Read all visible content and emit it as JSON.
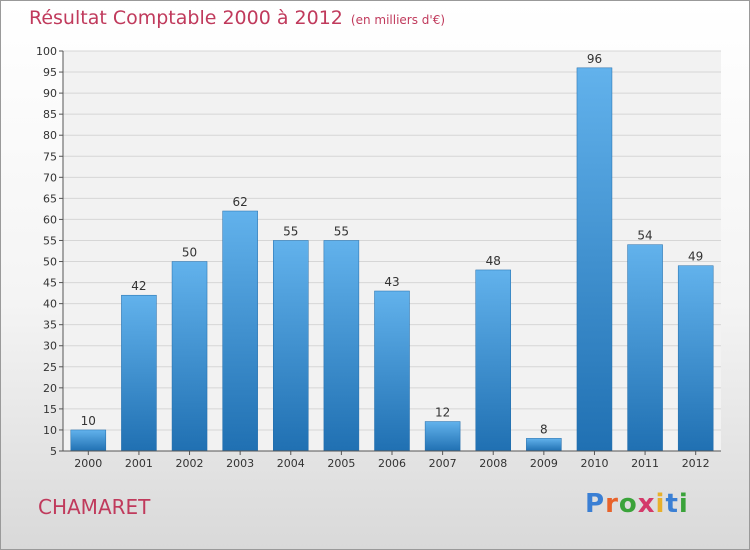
{
  "title": "Résultat Comptable 2000 à 2012",
  "subtitle": "(en milliers d'€)",
  "commune": "CHAMARET",
  "logo": {
    "text": "Proxiti",
    "colors": [
      "#3a7fd4",
      "#e8622a",
      "#3aa33a",
      "#d43a6a",
      "#e8b02a",
      "#3a7fd4",
      "#3aa33a"
    ]
  },
  "colors": {
    "bar": "#4296d6",
    "bar_light": "#62b2ec",
    "bar_dark": "#2070b2",
    "title": "#c03a5c"
  },
  "chart_data": {
    "type": "bar",
    "categories": [
      "2000",
      "2001",
      "2002",
      "2003",
      "2004",
      "2005",
      "2006",
      "2007",
      "2008",
      "2009",
      "2010",
      "2011",
      "2012"
    ],
    "values": [
      10,
      42,
      50,
      62,
      55,
      55,
      43,
      12,
      48,
      8,
      96,
      54,
      49
    ],
    "title": "Résultat Comptable 2000 à 2012",
    "xlabel": "",
    "ylabel": "",
    "ylim": [
      5,
      100
    ],
    "yticks": [
      5,
      10,
      15,
      20,
      25,
      30,
      35,
      40,
      45,
      50,
      55,
      60,
      65,
      70,
      75,
      80,
      85,
      90,
      95,
      100
    ],
    "grid": true,
    "data_labels": true,
    "legend": "none"
  }
}
